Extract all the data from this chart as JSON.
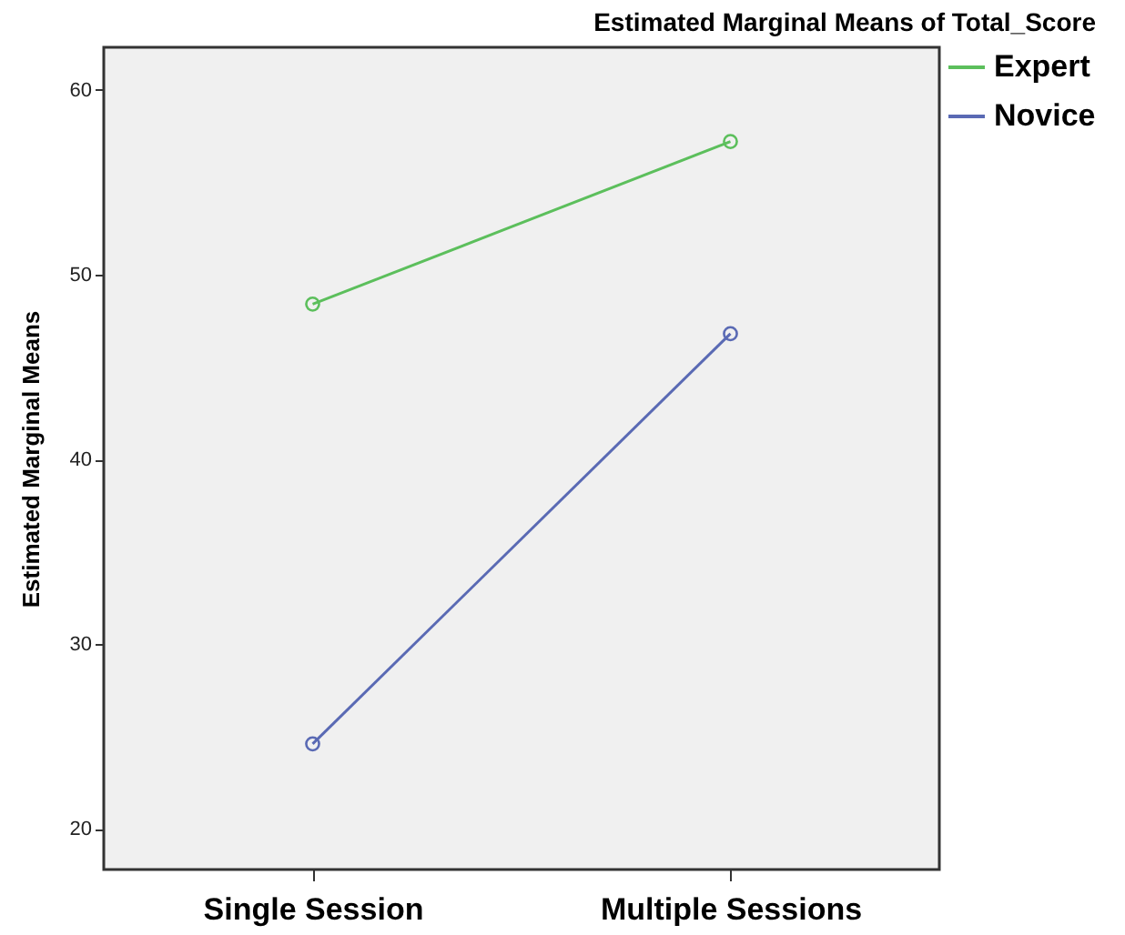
{
  "chart_data": {
    "type": "line",
    "title": "Estimated Marginal Means of Total_Score",
    "ylabel": "Estimated Marginal Means",
    "categories": [
      "Single Session",
      "Multiple Sessions"
    ],
    "series": [
      {
        "name": "Expert",
        "color": "#5cbf5c",
        "values": [
          48.4,
          57.2
        ]
      },
      {
        "name": "Novice",
        "color": "#5a6ab4",
        "values": [
          24.6,
          46.8
        ]
      }
    ],
    "ylim": [
      17.8,
      62.3
    ],
    "yticks": [
      20,
      30,
      40,
      50,
      60
    ],
    "grid": false,
    "legend": "top right",
    "marker": "circle"
  }
}
